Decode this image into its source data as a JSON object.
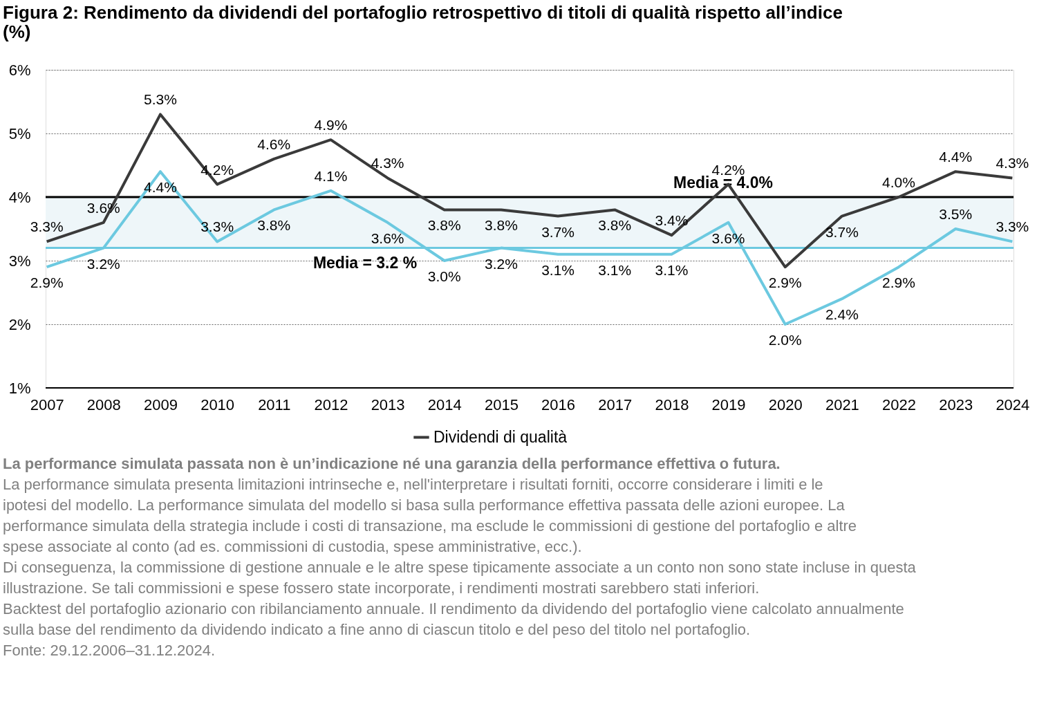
{
  "chart_data": {
    "type": "line",
    "title": "Figura 2: Rendimento da dividendi del portafoglio retrospettivo di titoli di qualità rispetto all’indice (%)",
    "categories": [
      "2007",
      "2008",
      "2009",
      "2010",
      "2011",
      "2012",
      "2013",
      "2014",
      "2015",
      "2016",
      "2017",
      "2018",
      "2019",
      "2020",
      "2021",
      "2022",
      "2023",
      "2024"
    ],
    "series": [
      {
        "name": "Dividendi di qualità",
        "color": "#3a3a3a",
        "values": [
          3.3,
          3.6,
          5.3,
          4.2,
          4.6,
          4.9,
          4.3,
          3.8,
          3.8,
          3.7,
          3.8,
          3.4,
          4.2,
          2.9,
          3.7,
          4.0,
          4.4,
          4.3
        ],
        "value_labels": [
          "3.3%",
          "3.6%",
          "5.3%",
          "4.2%",
          "4.6%",
          "4.9%",
          "4.3%",
          "3.8%",
          "3.8%",
          "3.7%",
          "3.8%",
          "3.4%",
          "4.2%",
          "2.9%",
          "3.7%",
          "4.0%",
          "4.4%",
          "4.3%"
        ]
      },
      {
        "color": "#6cc9e0",
        "values": [
          2.9,
          3.2,
          4.4,
          3.3,
          3.8,
          4.1,
          3.6,
          3.0,
          3.2,
          3.1,
          3.1,
          3.1,
          3.6,
          2.0,
          2.4,
          2.9,
          3.5,
          3.3
        ],
        "value_labels": [
          "2.9%",
          "3.2%",
          "4.4%",
          "3.3%",
          "3.8%",
          "4.1%",
          "3.6%",
          "3.0%",
          "3.2%",
          "3.1%",
          "3.1%",
          "3.1%",
          "3.6%",
          "2.0%",
          "2.4%",
          "2.9%",
          "3.5%",
          "3.3%"
        ]
      }
    ],
    "ylim": [
      1,
      6
    ],
    "yticks": [
      {
        "value": 1,
        "label": "1%"
      },
      {
        "value": 2,
        "label": "2%"
      },
      {
        "value": 3,
        "label": "3%"
      },
      {
        "value": 4,
        "label": "4%"
      },
      {
        "value": 5,
        "label": "5%"
      },
      {
        "value": 6,
        "label": "6%"
      }
    ],
    "grid": "y",
    "legend": "bottom",
    "ref_lines": [
      {
        "axis": "y",
        "value": 4.0,
        "label": "Media = 4.0%",
        "color": "#000000"
      },
      {
        "axis": "y",
        "value": 3.2,
        "label": "Media = 3.2 %",
        "color": "#6cc9e0"
      }
    ],
    "bands": [
      {
        "axis": "y",
        "from": 3.2,
        "to": 4.0,
        "color": "#eef6f9"
      }
    ],
    "annotations": [
      "La performance simulata passata non è un’indicazione né una garanzia della performance effettiva o futura.",
      "La performance simulata presenta limitazioni intrinseche e, nell'interpretare i risultati forniti, occorre considerare i limiti e le ipotesi del modello. La performance simulata del modello si basa sulla performance effettiva passata delle azioni europee. La performance simulata della strategia include i costi di transazione, ma esclude le commissioni di gestione del portafoglio e altre spese associate al conto (ad es. commissioni di custodia, spese amministrative, ecc.).",
      "Di conseguenza, la commissione di gestione annuale e le altre spese tipicamente associate a un conto non sono state incluse in questa illustrazione. Se tali commissioni e spese fossero state incorporate, i rendimenti mostrati sarebbero stati inferiori.",
      "Backtest del portafoglio azionario con ribilanciamento annuale. Il rendimento da dividendo del portafoglio viene calcolato annualmente sulla base del rendimento da dividendo indicato a fine anno di ciascun titolo e del peso del titolo nel portafoglio.",
      "Fonte: 29.12.2006–31.12.2024."
    ]
  }
}
